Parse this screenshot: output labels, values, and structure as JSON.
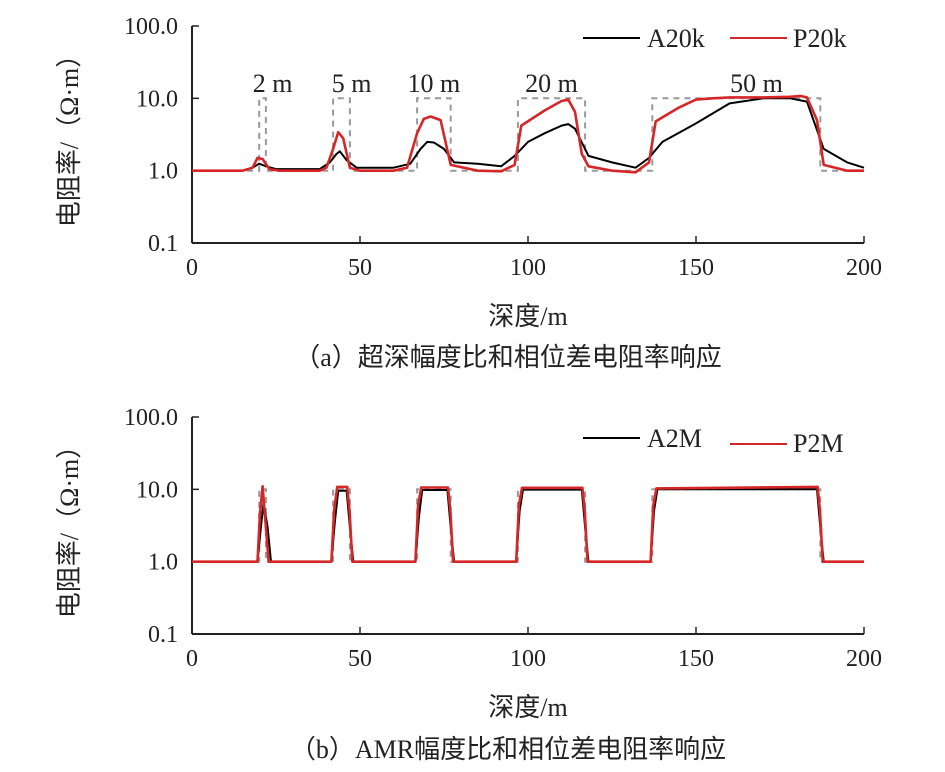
{
  "chart_data": [
    {
      "type": "line",
      "id": "a",
      "caption": "（a）超深幅度比和相位差电阻率响应",
      "xlabel": "深度/m",
      "ylabel": "电阻率/（Ω·m）",
      "xlim": [
        0,
        200
      ],
      "ylim": [
        0.1,
        100
      ],
      "yscale": "log",
      "xticks": [
        {
          "value": 0,
          "label": "0"
        },
        {
          "value": 50,
          "label": "50"
        },
        {
          "value": 100,
          "label": "100"
        },
        {
          "value": 150,
          "label": "150"
        },
        {
          "value": 200,
          "label": "200"
        }
      ],
      "yticks": [
        {
          "value": 0.1,
          "label": "0.1"
        },
        {
          "value": 1,
          "label": "1.0"
        },
        {
          "value": 10,
          "label": "10.0"
        },
        {
          "value": 100,
          "label": "100.0"
        }
      ],
      "block_labels": [
        {
          "text": "2 m",
          "x": 24
        },
        {
          "text": "5 m",
          "x": 47.5
        },
        {
          "text": "10 m",
          "x": 72
        },
        {
          "text": "20 m",
          "x": 107
        },
        {
          "text": "50 m",
          "x": 168
        }
      ],
      "model": {
        "name": "",
        "color": "#999999",
        "style": "dashed",
        "x": [
          0,
          20,
          20,
          22,
          22,
          42,
          42,
          47,
          47,
          67,
          67,
          77,
          77,
          97,
          97,
          117,
          117,
          137,
          137,
          187,
          187,
          200
        ],
        "y": [
          1,
          1,
          10,
          10,
          1,
          1,
          10,
          10,
          1,
          1,
          10,
          10,
          1,
          1,
          10,
          10,
          1,
          1,
          10,
          10,
          1,
          1
        ]
      },
      "series": [
        {
          "name": "A20k",
          "color": "#000000",
          "x": [
            0,
            15,
            18,
            20,
            22,
            25,
            30,
            38,
            41,
            43,
            44,
            46,
            49,
            52,
            60,
            65,
            68,
            70,
            72,
            75,
            78,
            85,
            92,
            96,
            100,
            105,
            110,
            112,
            114,
            118,
            125,
            132,
            136,
            140,
            150,
            160,
            170,
            178,
            183,
            188,
            195,
            200
          ],
          "y": [
            1,
            1,
            1.1,
            1.25,
            1.15,
            1.05,
            1.05,
            1.05,
            1.3,
            1.7,
            1.85,
            1.4,
            1.1,
            1.1,
            1.1,
            1.25,
            2,
            2.5,
            2.45,
            2,
            1.3,
            1.25,
            1.15,
            1.6,
            2.5,
            3.3,
            4.2,
            4.4,
            3.8,
            1.6,
            1.3,
            1.1,
            1.5,
            2.5,
            4.5,
            8.5,
            10,
            10,
            9,
            2,
            1.3,
            1.1
          ]
        },
        {
          "name": "P20k",
          "color": "#d62728",
          "x": [
            0,
            15,
            18,
            19.5,
            21,
            23,
            26,
            30,
            38,
            40,
            42,
            43.5,
            45,
            47,
            50,
            60,
            64,
            67,
            69,
            71,
            74,
            77,
            85,
            92,
            96,
            98,
            105,
            110,
            112,
            114,
            116,
            118,
            125,
            132,
            136,
            138,
            145,
            150,
            155,
            160,
            170,
            178,
            181,
            183,
            186,
            188,
            195,
            200
          ],
          "y": [
            1,
            1,
            1.1,
            1.5,
            1.45,
            1.05,
            1,
            1,
            1,
            1.1,
            2,
            3.4,
            2.8,
            1.1,
            1,
            1,
            1.1,
            3.3,
            5.2,
            5.6,
            5,
            1.2,
            1,
            0.98,
            1.2,
            4.2,
            6.8,
            9.2,
            9.6,
            6.5,
            1.7,
            1.15,
            1,
            0.95,
            1.3,
            4.8,
            7.5,
            9.6,
            10,
            10.3,
            10.3,
            10.5,
            10.8,
            10.3,
            5,
            1.2,
            1,
            1
          ]
        }
      ]
    },
    {
      "type": "line",
      "id": "b",
      "caption": "（b）AMR幅度比和相位差电阻率响应",
      "xlabel": "深度/m",
      "ylabel": "电阻率/（Ω·m）",
      "xlim": [
        0,
        200
      ],
      "ylim": [
        0.1,
        100
      ],
      "yscale": "log",
      "xticks": [
        {
          "value": 0,
          "label": "0"
        },
        {
          "value": 50,
          "label": "50"
        },
        {
          "value": 100,
          "label": "100"
        },
        {
          "value": 150,
          "label": "150"
        },
        {
          "value": 200,
          "label": "200"
        }
      ],
      "yticks": [
        {
          "value": 0.1,
          "label": "0.1"
        },
        {
          "value": 1,
          "label": "1.0"
        },
        {
          "value": 10,
          "label": "10.0"
        },
        {
          "value": 100,
          "label": "100.0"
        }
      ],
      "block_labels": [],
      "model": {
        "name": "",
        "color": "#999999",
        "style": "dashed",
        "x": [
          0,
          20,
          20,
          22,
          22,
          42,
          42,
          47,
          47,
          67,
          67,
          77,
          77,
          97,
          97,
          117,
          117,
          137,
          137,
          187,
          187,
          200
        ],
        "y": [
          1,
          1,
          10,
          10,
          1,
          1,
          10,
          10,
          1,
          1,
          10,
          10,
          1,
          1,
          10,
          10,
          1,
          1,
          10,
          10,
          1,
          1
        ]
      },
      "series": [
        {
          "name": "A2M",
          "color": "#000000",
          "x": [
            0,
            19.5,
            20.5,
            21.3,
            22.5,
            23.5,
            41.5,
            42.5,
            43.5,
            46,
            47,
            48,
            66.5,
            67.5,
            68.5,
            76,
            77,
            78,
            96.5,
            97.5,
            98.5,
            116,
            117,
            118,
            136.5,
            137.5,
            138.5,
            186,
            187,
            188,
            200
          ],
          "y": [
            1,
            1,
            3,
            6.5,
            3,
            1,
            1,
            3.5,
            9.5,
            9.6,
            3,
            1,
            1,
            4,
            9.8,
            9.8,
            3,
            1,
            1,
            5,
            9.9,
            9.9,
            3,
            1,
            1,
            5,
            10,
            10,
            3,
            1,
            1
          ]
        },
        {
          "name": "P2M",
          "color": "#d62728",
          "x": [
            0,
            19.5,
            20.2,
            21,
            21.8,
            22.8,
            41.5,
            42.3,
            43.2,
            46.2,
            46.9,
            47.7,
            66.5,
            67.3,
            68.2,
            76.2,
            76.9,
            77.7,
            96.5,
            97.3,
            98.2,
            116.2,
            116.9,
            117.7,
            136.5,
            137.3,
            138.2,
            186.2,
            186.9,
            187.7,
            200
          ],
          "y": [
            1,
            1,
            4.5,
            11,
            4,
            1,
            1,
            5,
            10.8,
            10.8,
            5,
            1,
            1,
            6,
            10.6,
            10.6,
            5,
            1,
            1,
            6,
            10.5,
            10.5,
            5,
            1,
            1,
            6,
            10.3,
            10.8,
            5,
            1,
            1
          ]
        }
      ]
    }
  ]
}
